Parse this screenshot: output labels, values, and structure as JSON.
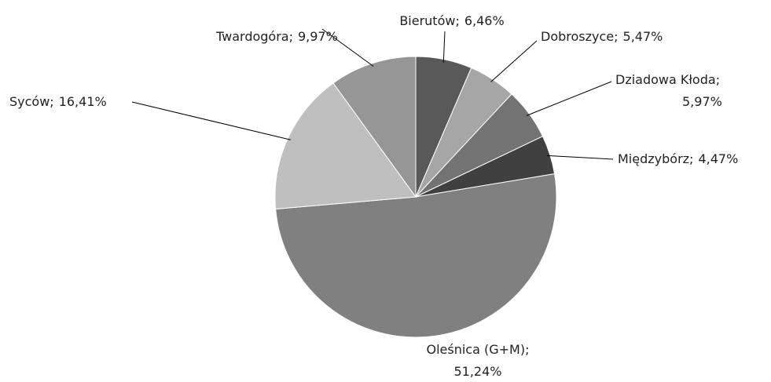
{
  "chart_data": {
    "type": "pie",
    "categories": [
      "Bierutów",
      "Dobroszyce",
      "Dziadowa Kłoda",
      "Międzybórz",
      "Oleśnica (G+M)",
      "Syców",
      "Twardogóra"
    ],
    "values": [
      6.46,
      5.47,
      5.97,
      4.47,
      51.24,
      16.41,
      9.97
    ],
    "value_labels": [
      "6,46%",
      "5,47%",
      "5,97%",
      "4,47%",
      "51,24%",
      "16,41%",
      "9,97%"
    ],
    "label_separator": ";",
    "colors": [
      "#595959",
      "#a6a6a6",
      "#737373",
      "#404040",
      "#808080",
      "#bfbfbf",
      "#969696"
    ]
  }
}
